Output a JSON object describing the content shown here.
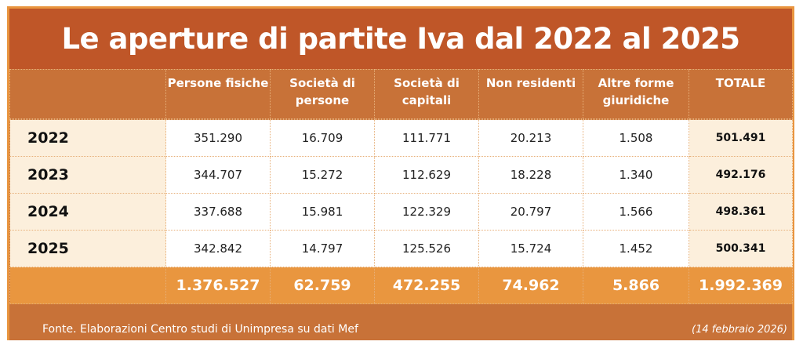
{
  "title": "Le aperture di partite Iva dal 2022 al 2025",
  "headers": [
    "",
    "Persone fisiche",
    "Società di persone",
    "Società di capitali",
    "Non residenti",
    "Altre forme giuridiche",
    "TOTALE"
  ],
  "rows": [
    {
      "year": "2022",
      "values": [
        "351.290",
        "16.709",
        "111.771",
        "20.213",
        "1.508"
      ],
      "total": "501.491"
    },
    {
      "year": "2023",
      "values": [
        "344.707",
        "15.272",
        "112.629",
        "18.228",
        "1.340"
      ],
      "total": "492.176"
    },
    {
      "year": "2024",
      "values": [
        "337.688",
        "15.981",
        "122.329",
        "20.797",
        "1.566"
      ],
      "total": "498.361"
    },
    {
      "year": "2025",
      "values": [
        "342.842",
        "14.797",
        "125.526",
        "15.724",
        "1.452"
      ],
      "total": "500.341"
    }
  ],
  "totals": [
    "1.376.527",
    "62.759",
    "472.255",
    "74.962",
    "5.866",
    "1.992.369"
  ],
  "source": "Fonte. Elaborazioni Centro studi di Unimpresa su dati Mef",
  "date": "(14 febbraio 2026)",
  "colors": {
    "title_bg": "#bf5628",
    "header_bg": "#c87238",
    "totals_bg": "#e9963f",
    "cream": "#fcefdc"
  }
}
